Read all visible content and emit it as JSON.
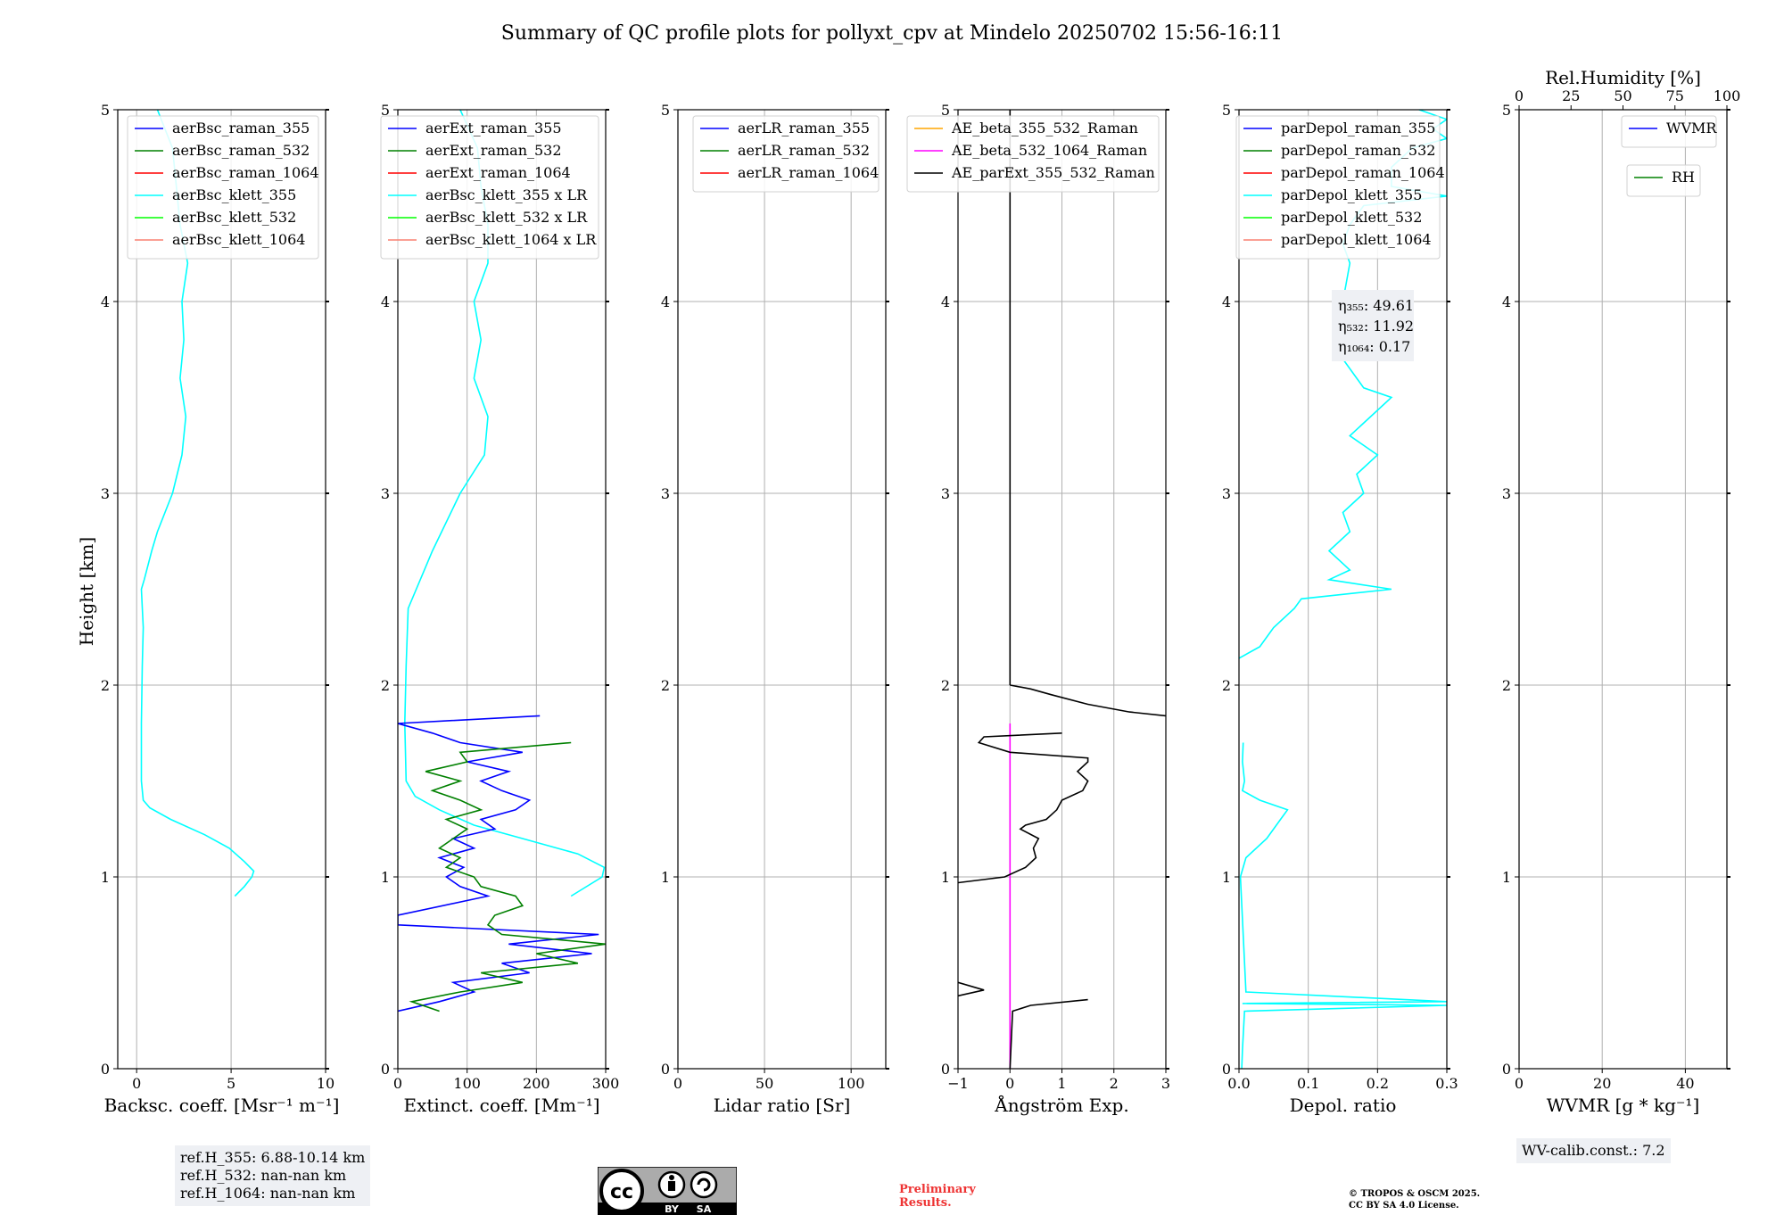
{
  "title": "Summary of QC profile plots for pollyxt_cpv at Mindelo 20250702 15:56-16:11",
  "ylabel": "Height [km]",
  "colors": {
    "blue": "#0000ff",
    "green": "#008000",
    "red": "#ff0000",
    "cyan": "#00ffff",
    "lime": "#00ff00",
    "salmon": "#fa8072",
    "orange": "#ffa500",
    "magenta": "#ff00ff",
    "black": "#000000",
    "grid": "#b0b0b0",
    "infobox": "#eef0f4"
  },
  "chart_data": [
    {
      "type": "line",
      "name": "backscatter",
      "xlabel": "Backsc. coeff. [Msr⁻¹ m⁻¹]",
      "xlim": [
        -1,
        10
      ],
      "ylim": [
        0,
        5
      ],
      "xticks": [
        0,
        5,
        10
      ],
      "yticks": [
        0,
        1,
        2,
        3,
        4,
        5
      ],
      "legend": [
        "aerBsc_raman_355",
        "aerBsc_raman_532",
        "aerBsc_raman_1064",
        "aerBsc_klett_355",
        "aerBsc_klett_532",
        "aerBsc_klett_1064"
      ],
      "legend_colors": [
        "blue",
        "green",
        "red",
        "cyan",
        "lime",
        "salmon"
      ],
      "legend_loc": "top-right",
      "series": [
        {
          "color": "cyan",
          "y": [
            0.9,
            0.95,
            1.0,
            1.03,
            1.08,
            1.15,
            1.22,
            1.3,
            1.36,
            1.4,
            1.5,
            1.8,
            2.1,
            2.3,
            2.5,
            2.55,
            2.7,
            2.8,
            3.0,
            3.2,
            3.4,
            3.6,
            3.8,
            4.0,
            4.2,
            4.4,
            4.6,
            4.8,
            4.95,
            5.0
          ],
          "x": [
            5.2,
            5.7,
            6.1,
            6.2,
            5.7,
            4.9,
            3.6,
            1.8,
            0.7,
            0.35,
            0.25,
            0.25,
            0.3,
            0.35,
            0.25,
            0.4,
            0.8,
            1.1,
            1.9,
            2.4,
            2.6,
            2.3,
            2.5,
            2.4,
            2.7,
            2.3,
            2.1,
            1.9,
            1.3,
            1.1
          ]
        }
      ]
    },
    {
      "type": "line",
      "name": "extinction",
      "xlabel": "Extinct. coeff. [Mm⁻¹]",
      "xlim": [
        0,
        300
      ],
      "ylim": [
        0,
        5
      ],
      "xticks": [
        0,
        100,
        200,
        300
      ],
      "yticks": [
        0,
        1,
        2,
        3,
        4,
        5
      ],
      "legend": [
        "aerExt_raman_355",
        "aerExt_raman_532",
        "aerExt_raman_1064",
        "aerBsc_klett_355 x LR",
        "aerBsc_klett_532 x LR",
        "aerBsc_klett_1064 x LR"
      ],
      "legend_colors": [
        "blue",
        "green",
        "red",
        "cyan",
        "lime",
        "salmon"
      ],
      "legend_loc": "top-right",
      "series": [
        {
          "color": "cyan",
          "y": [
            0.9,
            1.0,
            1.05,
            1.12,
            1.2,
            1.27,
            1.35,
            1.42,
            1.5,
            1.8,
            2.1,
            2.4,
            2.7,
            3.0,
            3.2,
            3.4,
            3.6,
            3.8,
            4.0,
            4.2,
            4.4,
            4.6,
            4.8,
            5.0
          ],
          "x": [
            250,
            295,
            298,
            260,
            180,
            110,
            60,
            25,
            12,
            10,
            12,
            15,
            50,
            90,
            125,
            130,
            110,
            120,
            110,
            130,
            130,
            120,
            115,
            90
          ]
        },
        {
          "color": "blue",
          "y": [
            0.3,
            0.35,
            0.4,
            0.45,
            0.5,
            0.55,
            0.6,
            0.65,
            0.7,
            0.75,
            0.8,
            0.9,
            0.95,
            1.0,
            1.05,
            1.1,
            1.15,
            1.2,
            1.25,
            1.3,
            1.35,
            1.4,
            1.45,
            1.5,
            1.55,
            1.6,
            1.65,
            1.7,
            1.75,
            1.8,
            1.84
          ],
          "x": [
            0,
            60,
            110,
            80,
            190,
            150,
            280,
            160,
            290,
            0,
            0,
            130,
            90,
            70,
            95,
            60,
            110,
            80,
            140,
            120,
            170,
            190,
            150,
            120,
            160,
            100,
            180,
            90,
            50,
            0,
            205
          ]
        },
        {
          "color": "green",
          "y": [
            0.3,
            0.35,
            0.4,
            0.45,
            0.5,
            0.55,
            0.6,
            0.65,
            0.7,
            0.75,
            0.8,
            0.85,
            0.9,
            0.95,
            1.0,
            1.05,
            1.1,
            1.15,
            1.2,
            1.25,
            1.3,
            1.35,
            1.4,
            1.45,
            1.5,
            1.55,
            1.6,
            1.65,
            1.7
          ],
          "x": [
            60,
            20,
            90,
            180,
            120,
            260,
            200,
            300,
            150,
            130,
            140,
            180,
            170,
            120,
            110,
            70,
            90,
            60,
            80,
            100,
            70,
            120,
            90,
            50,
            90,
            40,
            100,
            90,
            250
          ]
        }
      ]
    },
    {
      "type": "line",
      "name": "lidar-ratio",
      "xlabel": "Lidar ratio [Sr]",
      "xlim": [
        0,
        120
      ],
      "ylim": [
        0,
        5
      ],
      "xticks": [
        0,
        50,
        100
      ],
      "yticks": [
        0,
        1,
        2,
        3,
        4,
        5
      ],
      "legend": [
        "aerLR_raman_355",
        "aerLR_raman_532",
        "aerLR_raman_1064"
      ],
      "legend_colors": [
        "blue",
        "green",
        "red"
      ],
      "legend_loc": "top-right",
      "series": []
    },
    {
      "type": "line",
      "name": "angstrom",
      "xlabel": "Ångström Exp.",
      "xlim": [
        -1,
        3
      ],
      "ylim": [
        0,
        5
      ],
      "xticks": [
        -1,
        0,
        1,
        2,
        3
      ],
      "xticklabels": [
        "−1",
        "0",
        "1",
        "2",
        "3"
      ],
      "yticks": [
        0,
        1,
        2,
        3,
        4,
        5
      ],
      "legend": [
        "AE_beta_355_532_Raman",
        "AE_beta_532_1064_Raman",
        "AE_parExt_355_532_Raman"
      ],
      "legend_colors": [
        "orange",
        "magenta",
        "black"
      ],
      "legend_loc": "top-right",
      "series": [
        {
          "color": "magenta",
          "y": [
            0.0,
            1.8
          ],
          "x": [
            0.0,
            0.0
          ]
        },
        {
          "color": "black",
          "y": [
            0.0,
            0.3,
            0.33,
            0.36
          ],
          "x": [
            0.0,
            0.05,
            0.4,
            1.5
          ]
        },
        {
          "color": "black",
          "y": [
            0.38,
            0.41,
            0.45
          ],
          "x": [
            -1.0,
            -0.5,
            -1.0
          ]
        },
        {
          "color": "black",
          "y": [
            0.97,
            1.0,
            1.05,
            1.1,
            1.15,
            1.2,
            1.25,
            1.27,
            1.3,
            1.35,
            1.4,
            1.45,
            1.5,
            1.55,
            1.6,
            1.62,
            1.65,
            1.7,
            1.73,
            1.75
          ],
          "x": [
            -1.0,
            -0.1,
            0.3,
            0.5,
            0.45,
            0.55,
            0.2,
            0.3,
            0.7,
            0.9,
            1.0,
            1.4,
            1.5,
            1.3,
            1.5,
            1.5,
            0.0,
            -0.6,
            -0.5,
            1.0
          ]
        },
        {
          "color": "black",
          "y": [
            2.0,
            1.98,
            1.95,
            1.9,
            1.86,
            1.84
          ],
          "x": [
            0.0,
            0.4,
            0.8,
            1.5,
            2.3,
            3.0
          ]
        },
        {
          "color": "black",
          "y": [
            2.0,
            5.0
          ],
          "x": [
            0.0,
            0.0
          ]
        }
      ]
    },
    {
      "type": "line",
      "name": "depolarization",
      "xlabel": "Depol. ratio",
      "xlim": [
        0.0,
        0.3
      ],
      "ylim": [
        0,
        5
      ],
      "xticks": [
        0.0,
        0.1,
        0.2,
        0.3
      ],
      "xticklabels": [
        "0.0",
        "0.1",
        "0.2",
        "0.3"
      ],
      "yticks": [
        0,
        1,
        2,
        3,
        4,
        5
      ],
      "legend": [
        "parDepol_raman_355",
        "parDepol_raman_532",
        "parDepol_raman_1064",
        "parDepol_klett_355",
        "parDepol_klett_532",
        "parDepol_klett_1064"
      ],
      "legend_colors": [
        "blue",
        "green",
        "red",
        "cyan",
        "lime",
        "salmon"
      ],
      "legend_loc": "top-right",
      "eta": [
        "η₃₅₅: 49.61",
        "η₅₃₂: 11.92",
        "η₁₀₆₄: 0.17"
      ],
      "series": [
        {
          "color": "cyan",
          "y": [
            0.0,
            0.1,
            0.3,
            0.33,
            0.34,
            0.35,
            0.4,
            1.0,
            1.1,
            1.2,
            1.3,
            1.35,
            1.4,
            1.45,
            1.5,
            1.6,
            1.7
          ],
          "x": [
            0.004,
            0.005,
            0.008,
            0.3,
            0.005,
            0.3,
            0.01,
            0.002,
            0.01,
            0.04,
            0.06,
            0.07,
            0.03,
            0.005,
            0.008,
            0.005,
            0.006
          ]
        },
        {
          "color": "cyan",
          "y": [
            2.14,
            2.2,
            2.3,
            2.4,
            2.45,
            2.5,
            2.55,
            2.6,
            2.7,
            2.8,
            2.9,
            3.0,
            3.1,
            3.2,
            3.3,
            3.4,
            3.5,
            3.55,
            3.6,
            3.7,
            3.8,
            4.0,
            4.2,
            4.3,
            4.4,
            4.5,
            4.55,
            4.6,
            4.7,
            4.8,
            4.85,
            4.9,
            4.95,
            5.0
          ],
          "x": [
            0.0,
            0.03,
            0.05,
            0.08,
            0.09,
            0.22,
            0.13,
            0.16,
            0.13,
            0.16,
            0.15,
            0.18,
            0.17,
            0.2,
            0.16,
            0.19,
            0.22,
            0.18,
            0.17,
            0.15,
            0.16,
            0.15,
            0.16,
            0.15,
            0.16,
            0.18,
            0.3,
            0.22,
            0.22,
            0.25,
            0.3,
            0.28,
            0.3,
            0.26
          ]
        }
      ]
    },
    {
      "type": "line",
      "name": "wvmr",
      "xlabel": "WVMR [g * kg⁻¹]",
      "xlim": [
        0,
        50
      ],
      "ylim": [
        0,
        5
      ],
      "xticks": [
        0,
        20,
        40
      ],
      "yticks": [
        0,
        1,
        2,
        3,
        4,
        5
      ],
      "x2label": "Rel.Humidity [%]",
      "x2lim": [
        0,
        100
      ],
      "x2ticks": [
        0,
        25,
        50,
        75,
        100
      ],
      "legend": [
        "WVMR"
      ],
      "legend_colors": [
        "blue"
      ],
      "legend2": [
        "RH"
      ],
      "legend2_colors": [
        "green"
      ],
      "legend_loc": "top-right",
      "series": []
    }
  ],
  "footer": {
    "refh": [
      "ref.H_355: 6.88-10.14 km",
      "ref.H_532: nan-nan km",
      "ref.H_1064: nan-nan km"
    ],
    "cc": {
      "by": "BY",
      "sa": "SA"
    },
    "preliminary": [
      "Preliminary",
      "Results."
    ],
    "copyright": [
      "© TROPOS & OSCM 2025.",
      "CC BY SA 4.0 License."
    ],
    "wvcalib": "WV-calib.const.: 7.2"
  }
}
